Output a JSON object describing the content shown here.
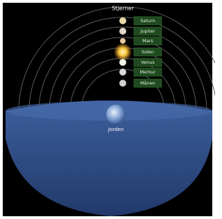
{
  "title": "Stjerner",
  "bodies": [
    {
      "label": "Saturn"
    },
    {
      "label": "Jupiter"
    },
    {
      "label": "Mars"
    },
    {
      "label": "Solen"
    },
    {
      "label": "Venus"
    },
    {
      "label": "Merkur"
    },
    {
      "label": "Månen"
    }
  ],
  "earth": {
    "label": "Jorden"
  }
}
